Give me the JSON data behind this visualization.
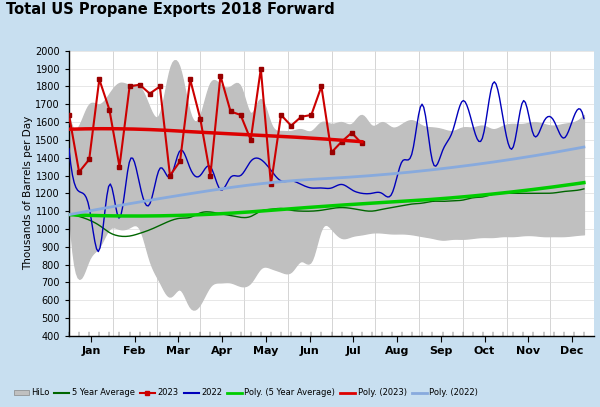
{
  "title": "Total US Propane Exports 2018 Forward",
  "ylabel": "Thousands of Barrels per Day",
  "background_color": "#c8dff0",
  "plot_bg_color": "#ffffff",
  "ylim": [
    400,
    2000
  ],
  "yticks": [
    400,
    500,
    600,
    700,
    800,
    900,
    1000,
    1100,
    1200,
    1300,
    1400,
    1500,
    1600,
    1700,
    1800,
    1900,
    2000
  ],
  "month_labels": [
    "Jan",
    "Feb",
    "Mar",
    "Apr",
    "May",
    "Jun",
    "Jul",
    "Aug",
    "Sep",
    "Oct",
    "Nov",
    "Dec"
  ],
  "hilo_upper": [
    1640,
    1580,
    1700,
    1700,
    1760,
    1820,
    1810,
    1800,
    1680,
    1650,
    1900,
    1900,
    1650,
    1640,
    1820,
    1810,
    1800,
    1800,
    1650,
    1730,
    1590,
    1550,
    1550,
    1560,
    1550,
    1600,
    1590,
    1600,
    1590,
    1640,
    1580,
    1600,
    1570,
    1590,
    1610,
    1580,
    1570,
    1560,
    1550,
    1570,
    1570,
    1580,
    1560,
    1580,
    1590,
    1590,
    1600,
    1590,
    1580,
    1590,
    1600,
    1640
  ],
  "hilo_lower": [
    1100,
    720,
    830,
    900,
    1000,
    1000,
    1010,
    1000,
    820,
    700,
    620,
    660,
    560,
    580,
    680,
    700,
    700,
    680,
    700,
    780,
    780,
    760,
    760,
    820,
    820,
    1000,
    1000,
    950,
    960,
    970,
    980,
    980,
    975,
    975,
    970,
    960,
    950,
    940,
    945,
    945,
    950,
    955,
    955,
    960,
    960,
    965,
    965,
    960,
    960,
    960,
    965,
    970
  ],
  "avg5yr_weekly": [
    1080,
    1070,
    1050,
    1020,
    980,
    960,
    960,
    975,
    995,
    1020,
    1045,
    1060,
    1065,
    1090,
    1095,
    1085,
    1075,
    1065,
    1070,
    1100,
    1110,
    1115,
    1105,
    1100,
    1100,
    1105,
    1115,
    1120,
    1115,
    1105,
    1100,
    1110,
    1120,
    1130,
    1140,
    1145,
    1155,
    1155,
    1158,
    1162,
    1175,
    1180,
    1195,
    1200,
    1200,
    1200,
    1200,
    1200,
    1202,
    1210,
    1215,
    1225
  ],
  "data_2023_weekly": [
    1640,
    1320,
    1390,
    1840,
    1670,
    1350,
    1800,
    1810,
    1760,
    1800,
    1300,
    1380,
    1840,
    1620,
    1300,
    1860,
    1660,
    1640,
    1500,
    1900,
    1250,
    1640,
    1580,
    1630,
    1640,
    1800,
    1430,
    1490,
    1540,
    1480,
    null,
    null,
    null,
    null,
    null,
    null,
    null,
    null,
    null,
    null,
    null,
    null,
    null,
    null,
    null,
    null,
    null,
    null,
    null,
    null,
    null,
    null
  ],
  "data_2022_weekly": [
    1450,
    1210,
    1120,
    880,
    1250,
    1060,
    1380,
    1250,
    1140,
    1340,
    1290,
    1440,
    1340,
    1300,
    1350,
    1220,
    1290,
    1300,
    1380,
    1390,
    1330,
    1270,
    1270,
    1250,
    1230,
    1230,
    1230,
    1250,
    1220,
    1200,
    1200,
    1200,
    1200,
    1380,
    1430,
    1700,
    1380,
    1440,
    1550,
    1720,
    1580,
    1520,
    1820,
    1620,
    1460,
    1720,
    1530,
    1600,
    1610,
    1510,
    1630,
    1620
  ],
  "n_points": 52,
  "poly_5yr_x": [
    0,
    13,
    26,
    39,
    51
  ],
  "poly_5yr_y": [
    1080,
    1080,
    1130,
    1180,
    1260
  ],
  "poly_2023_x": [
    0,
    7,
    14,
    21,
    29
  ],
  "poly_2023_y": [
    1560,
    1560,
    1540,
    1520,
    1490
  ],
  "poly_2022_x": [
    0,
    10,
    20,
    30,
    40,
    51
  ],
  "poly_2022_y": [
    1080,
    1180,
    1260,
    1300,
    1360,
    1460
  ],
  "colors": {
    "hilo_fill": "#c0c0c0",
    "avg5yr_line": "#006600",
    "data_2023_line": "#cc0000",
    "data_2023_marker": "#990000",
    "data_2022_line": "#0000bb",
    "poly_5yr": "#00cc00",
    "poly_2023": "#dd0000",
    "poly_2022": "#88aadd"
  }
}
